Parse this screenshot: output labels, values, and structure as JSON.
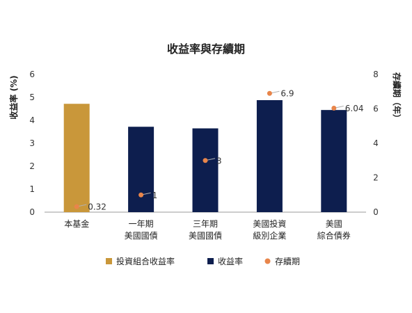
{
  "chart_data": {
    "type": "bar",
    "title": "收益率與存續期",
    "ylabel": "收益率 (%)",
    "y2label": "存續期（年）",
    "ylim": [
      0,
      6
    ],
    "y2lim": [
      0,
      8
    ],
    "yticks": [
      "0",
      "1",
      "2",
      "3",
      "4",
      "5",
      "6"
    ],
    "y2ticks": [
      "0",
      "2",
      "4",
      "6",
      "8"
    ],
    "grid": false,
    "legend_position": "bottom",
    "categories": [
      [
        "本基金"
      ],
      [
        "一年期",
        "美國國債"
      ],
      [
        "三年期",
        "美國國債"
      ],
      [
        "美國投資",
        "級別企業"
      ],
      [
        "美國",
        "綜合債券"
      ]
    ],
    "series": [
      {
        "name": "投資組合收益率",
        "kind": "bar",
        "axis": "left",
        "color": "#C9973A",
        "values": [
          4.72,
          null,
          null,
          null,
          null
        ]
      },
      {
        "name": "收益率",
        "kind": "bar",
        "axis": "left",
        "color": "#0D1E4E",
        "values": [
          null,
          3.72,
          3.65,
          4.88,
          4.45
        ]
      },
      {
        "name": "存續期",
        "kind": "point",
        "axis": "right",
        "color": "#E8854A",
        "values": [
          0.32,
          1,
          3,
          6.9,
          6.04
        ],
        "labels": [
          "0.32",
          "1",
          "3",
          "6.9",
          "6.04"
        ]
      }
    ]
  }
}
